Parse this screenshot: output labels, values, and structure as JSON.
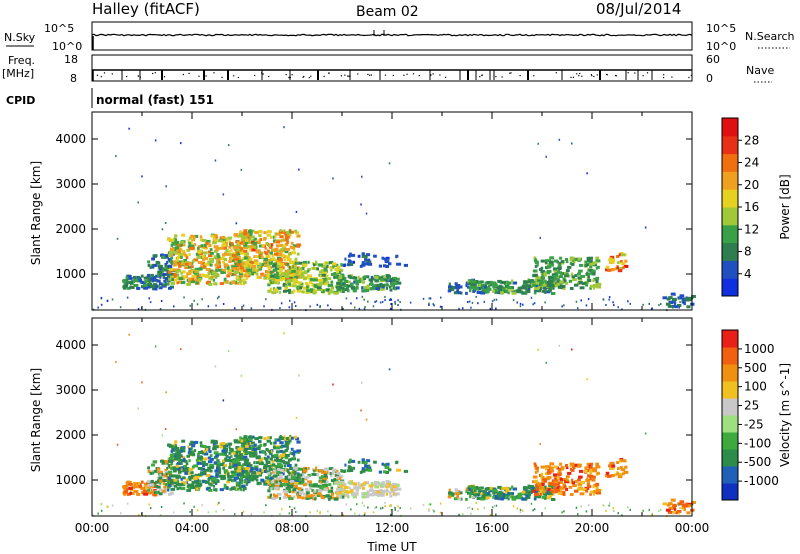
{
  "header": {
    "station": "Halley (fitACF)",
    "beam": "Beam 02",
    "date": "08/Jul/2014"
  },
  "strip_labels": {
    "nsky": "N.Sky",
    "nsky_ticks": [
      "10^5",
      "10^0"
    ],
    "nsearch": "N.Search",
    "nsearch_ticks": [
      "10^5",
      "10^0"
    ],
    "freq": "Freq.",
    "freq_unit": "[MHz]",
    "freq_ticks": [
      "18",
      "8"
    ],
    "nave": "Nave",
    "nave_ticks": [
      "60",
      "0"
    ],
    "cpid": "CPID",
    "cpid_value": "normal (fast) 151"
  },
  "chart_data": [
    {
      "type": "heatmap",
      "name": "power-panel",
      "ylabel": "Slant Range [km]",
      "yticks": [
        "1000",
        "2000",
        "3000",
        "4000"
      ],
      "ylim": [
        200,
        4600
      ],
      "xlim": [
        0,
        24
      ],
      "colorbar": {
        "label": "Power [dB]",
        "ticks": [
          "4",
          "8",
          "12",
          "16",
          "20",
          "24",
          "28"
        ],
        "range": [
          0,
          32
        ],
        "colors": [
          "#1030e0",
          "#2050c0",
          "#2e7e50",
          "#3aa048",
          "#a0c838",
          "#e6d020",
          "#f0a020",
          "#f07010",
          "#e83018",
          "#e01010"
        ]
      }
    },
    {
      "type": "heatmap",
      "name": "velocity-panel",
      "xlabel": "Time UT",
      "ylabel": "Slant Range [km]",
      "xticks": [
        "00:00",
        "04:00",
        "08:00",
        "12:00",
        "16:00",
        "20:00",
        "00:00"
      ],
      "yticks": [
        "1000",
        "2000",
        "3000",
        "4000"
      ],
      "ylim": [
        200,
        4600
      ],
      "xlim": [
        0,
        24
      ],
      "colorbar": {
        "label": "Velocity [m s^-1]",
        "ticks": [
          "1000",
          "500",
          "100",
          "25",
          "-25",
          "-100",
          "-500",
          "-1000"
        ],
        "colors": [
          "#1030c0",
          "#2060b8",
          "#2e8c4a",
          "#3caa3c",
          "#9ee080",
          "#c8c8c8",
          "#f0c020",
          "#f09010",
          "#f06010",
          "#e82018"
        ]
      }
    }
  ]
}
